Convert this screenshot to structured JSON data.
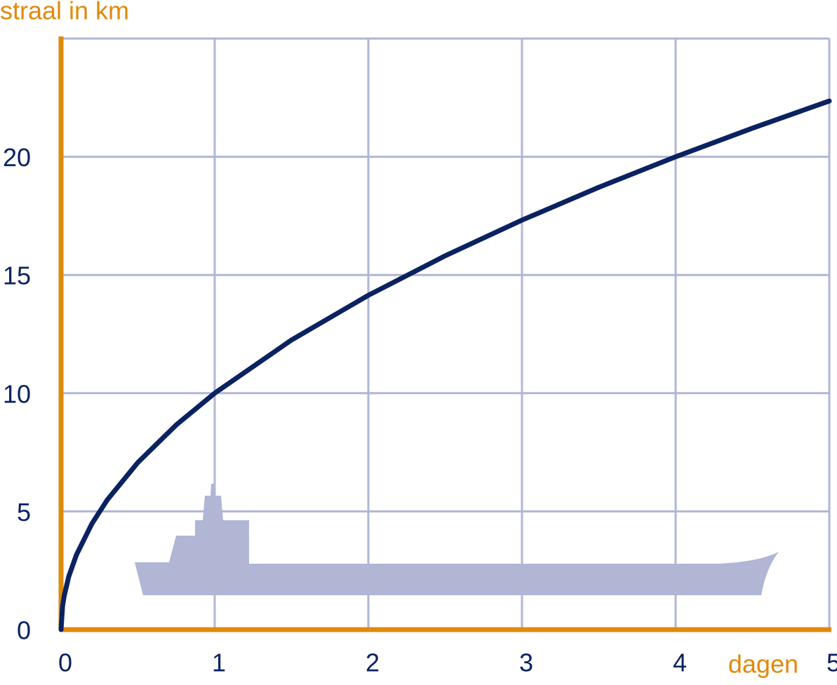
{
  "chart_data": {
    "type": "line",
    "y_label": "straal in km",
    "x_label": "dagen",
    "x": [
      0,
      0.01,
      0.02,
      0.05,
      0.1,
      0.2,
      0.3,
      0.5,
      0.75,
      1,
      1.5,
      2,
      2.5,
      3,
      3.5,
      4,
      4.5,
      5
    ],
    "series": [
      {
        "color": "#0b2261",
        "values": [
          0,
          1,
          1.41,
          2.24,
          3.16,
          4.47,
          5.48,
          7.07,
          8.66,
          10,
          12.25,
          14.14,
          15.81,
          17.32,
          18.71,
          20,
          21.21,
          22.36
        ]
      }
    ],
    "xlim": [
      0,
      5
    ],
    "ylim": [
      0,
      25
    ],
    "xticks": [
      0,
      1,
      2,
      3,
      4,
      5
    ],
    "yticks": [
      0,
      5,
      10,
      15,
      20
    ],
    "grid": true,
    "axis_color": "#e08a0c",
    "grid_color": "#b0b6d4"
  }
}
